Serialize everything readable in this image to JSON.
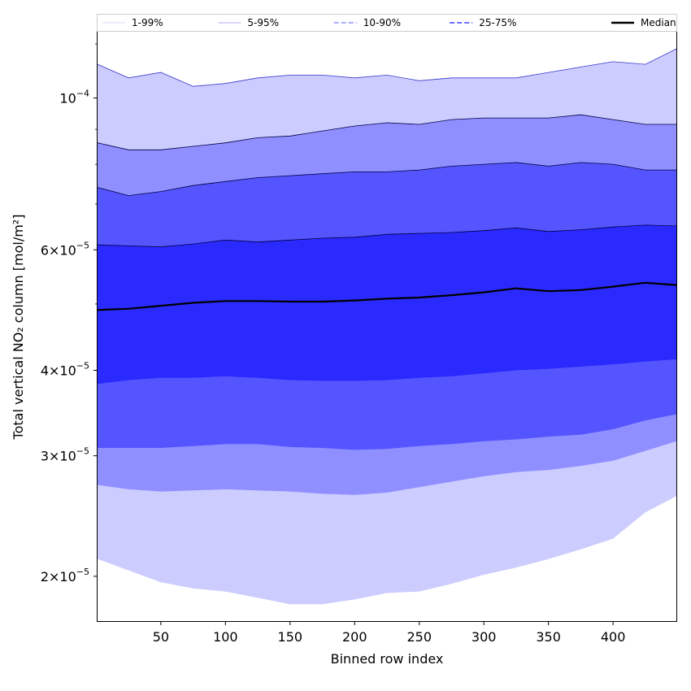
{
  "chart_data": {
    "type": "area",
    "xlabel": "Binned row index",
    "ylabel": "Total vertical NO₂ column [mol/m²]",
    "y_scale": "log",
    "xlim": [
      1,
      449
    ],
    "ylim": [
      1.72e-05,
      0.000125
    ],
    "x_ticks": [
      50,
      100,
      150,
      200,
      250,
      300,
      350,
      400
    ],
    "x_tick_labels": [
      "50",
      "100",
      "150",
      "200",
      "250",
      "300",
      "350",
      "400"
    ],
    "y_ticks": [
      2e-05,
      3e-05,
      4e-05,
      6e-05,
      0.0001
    ],
    "y_tick_labels": [
      {
        "mantissa": "2",
        "times": "×",
        "base": "10",
        "exp": "−5"
      },
      {
        "mantissa": "3",
        "times": "×",
        "base": "10",
        "exp": "−5"
      },
      {
        "mantissa": "4",
        "times": "×",
        "base": "10",
        "exp": "−5"
      },
      {
        "mantissa": "6",
        "times": "×",
        "base": "10",
        "exp": "−5"
      },
      {
        "mantissa": "",
        "times": "",
        "base": "10",
        "exp": "−4"
      }
    ],
    "grid": false,
    "legend_position": "top",
    "colors": {
      "band_outer": "#ccccff",
      "band_2": "#8f8fff",
      "band_3": "#5555ff",
      "band_inner": "#2a2aff",
      "median": "#000000"
    },
    "x": [
      1,
      25,
      50,
      75,
      100,
      125,
      150,
      175,
      200,
      225,
      250,
      275,
      300,
      325,
      350,
      375,
      400,
      425,
      449
    ],
    "median": [
      4.9e-05,
      4.92e-05,
      4.97e-05,
      5.02e-05,
      5.05e-05,
      5.05e-05,
      5.04e-05,
      5.04e-05,
      5.06e-05,
      5.09e-05,
      5.11e-05,
      5.15e-05,
      5.2e-05,
      5.27e-05,
      5.22e-05,
      5.24e-05,
      5.3e-05,
      5.37e-05,
      5.33e-05
    ],
    "series": [
      {
        "name": "1-99%",
        "lower": [
          2.12e-05,
          2.04e-05,
          1.96e-05,
          1.92e-05,
          1.9e-05,
          1.86e-05,
          1.82e-05,
          1.82e-05,
          1.85e-05,
          1.89e-05,
          1.9e-05,
          1.95e-05,
          2.01e-05,
          2.06e-05,
          2.12e-05,
          2.19e-05,
          2.27e-05,
          2.48e-05,
          2.62e-05
        ],
        "upper": [
          0.000112,
          0.000107,
          0.000109,
          0.000104,
          0.000105,
          0.000107,
          0.000108,
          0.000108,
          0.000107,
          0.000108,
          0.000106,
          0.000107,
          0.000107,
          0.000107,
          0.000109,
          0.000111,
          0.000113,
          0.000112,
          0.000118
        ]
      },
      {
        "name": "5-95%",
        "lower": [
          2.72e-05,
          2.68e-05,
          2.66e-05,
          2.67e-05,
          2.68e-05,
          2.67e-05,
          2.66e-05,
          2.64e-05,
          2.63e-05,
          2.65e-05,
          2.7e-05,
          2.75e-05,
          2.8e-05,
          2.84e-05,
          2.86e-05,
          2.9e-05,
          2.95e-05,
          3.05e-05,
          3.15e-05
        ],
        "upper": [
          8.6e-05,
          8.4e-05,
          8.4e-05,
          8.5e-05,
          8.6e-05,
          8.75e-05,
          8.8e-05,
          8.95e-05,
          9.1e-05,
          9.2e-05,
          9.15e-05,
          9.3e-05,
          9.35e-05,
          9.35e-05,
          9.35e-05,
          9.45e-05,
          9.3e-05,
          9.15e-05,
          9.15e-05
        ]
      },
      {
        "name": "10-90%",
        "lower": [
          3.08e-05,
          3.08e-05,
          3.08e-05,
          3.1e-05,
          3.12e-05,
          3.12e-05,
          3.09e-05,
          3.08e-05,
          3.06e-05,
          3.07e-05,
          3.1e-05,
          3.12e-05,
          3.15e-05,
          3.17e-05,
          3.2e-05,
          3.22e-05,
          3.28e-05,
          3.38e-05,
          3.45e-05
        ],
        "upper": [
          7.4e-05,
          7.2e-05,
          7.3e-05,
          7.45e-05,
          7.55e-05,
          7.65e-05,
          7.7e-05,
          7.75e-05,
          7.8e-05,
          7.8e-05,
          7.85e-05,
          7.95e-05,
          8e-05,
          8.05e-05,
          7.95e-05,
          8.05e-05,
          8e-05,
          7.85e-05,
          7.85e-05
        ]
      },
      {
        "name": "25-75%",
        "lower": [
          3.82e-05,
          3.87e-05,
          3.9e-05,
          3.9e-05,
          3.92e-05,
          3.9e-05,
          3.87e-05,
          3.86e-05,
          3.86e-05,
          3.87e-05,
          3.9e-05,
          3.92e-05,
          3.96e-05,
          4e-05,
          4.02e-05,
          4.05e-05,
          4.08e-05,
          4.12e-05,
          4.15e-05
        ],
        "upper": [
          6.1e-05,
          6.08e-05,
          6.06e-05,
          6.12e-05,
          6.2e-05,
          6.16e-05,
          6.2e-05,
          6.24e-05,
          6.26e-05,
          6.32e-05,
          6.34e-05,
          6.36e-05,
          6.4e-05,
          6.46e-05,
          6.38e-05,
          6.42e-05,
          6.48e-05,
          6.52e-05,
          6.5e-05
        ]
      }
    ],
    "legend": [
      {
        "label": "1-99%",
        "color": "#ccccff",
        "width": 0.8,
        "dash": "none"
      },
      {
        "label": "5-95%",
        "color": "#8f8fff",
        "width": 0.8,
        "dash": "none"
      },
      {
        "label": "10-90%",
        "color": "#7a7aff",
        "width": 1.2,
        "dash": "6 3"
      },
      {
        "label": "25-75%",
        "color": "#3f3fff",
        "width": 1.4,
        "dash": "6 3"
      },
      {
        "label": "Median",
        "color": "#000000",
        "width": 2.4,
        "dash": "none"
      }
    ]
  }
}
